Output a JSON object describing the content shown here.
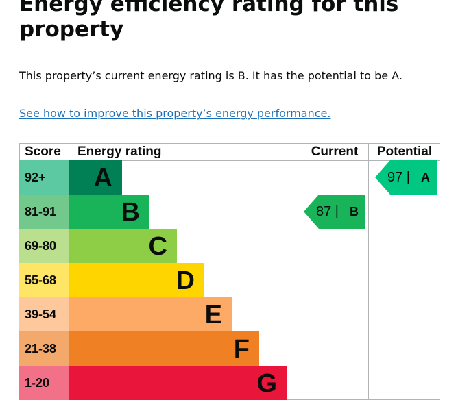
{
  "page": {
    "heading": "Energy efficiency rating for this property",
    "summary": "This property’s current energy rating is B. It has the potential to be A.",
    "improve_link": "See how to improve this property’s energy performance."
  },
  "chart_data": {
    "type": "table",
    "columns": [
      "Score",
      "Energy rating",
      "Current",
      "Potential"
    ],
    "bands": [
      {
        "score": "92+",
        "letter": "A",
        "color": "#008054",
        "score_color": "#5cc9a3"
      },
      {
        "score": "81-91",
        "letter": "B",
        "color": "#19b459",
        "score_color": "#72c98b"
      },
      {
        "score": "69-80",
        "letter": "C",
        "color": "#8dce46",
        "score_color": "#badf8f"
      },
      {
        "score": "55-68",
        "letter": "D",
        "color": "#ffd500",
        "score_color": "#ffe566"
      },
      {
        "score": "39-54",
        "letter": "E",
        "color": "#fcaa65",
        "score_color": "#fdc89b"
      },
      {
        "score": "21-38",
        "letter": "F",
        "color": "#ef8023",
        "score_color": "#f4a96c"
      },
      {
        "score": "1-20",
        "letter": "G",
        "color": "#e9153b",
        "score_color": "#f27088"
      }
    ],
    "current": {
      "value": "87",
      "separator": "|",
      "letter": "B",
      "color": "#19b459"
    },
    "potential": {
      "value": "97",
      "separator": "|",
      "letter": "A",
      "color": "#00c781"
    }
  }
}
